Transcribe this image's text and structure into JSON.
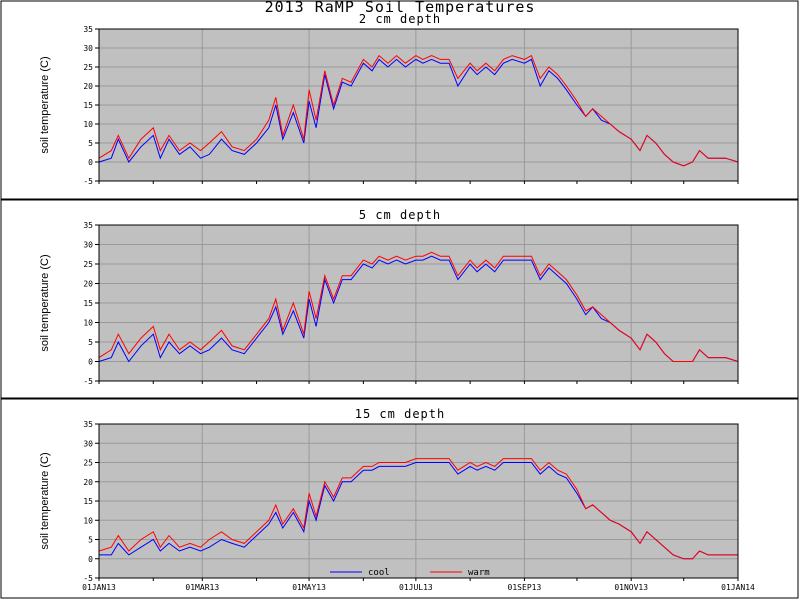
{
  "page_title": "2013 RaMP Soil Temperatures",
  "chart_data": [
    {
      "type": "line",
      "title": "2 cm depth",
      "ylabel": "soil temperature (C)",
      "ylim": [
        -5,
        35
      ],
      "yticks": [
        "-5",
        "0",
        "5",
        "10",
        "15",
        "20",
        "25",
        "30",
        "35"
      ],
      "xlim": [
        "2013-01-01",
        "2014-01-01"
      ],
      "grid": true,
      "x": [
        "2013-01-01",
        "2013-01-08",
        "2013-01-12",
        "2013-01-18",
        "2013-01-25",
        "2013-02-01",
        "2013-02-05",
        "2013-02-10",
        "2013-02-16",
        "2013-02-22",
        "2013-02-28",
        "2013-03-05",
        "2013-03-12",
        "2013-03-18",
        "2013-03-25",
        "2013-04-01",
        "2013-04-08",
        "2013-04-12",
        "2013-04-16",
        "2013-04-22",
        "2013-04-28",
        "2013-05-01",
        "2013-05-05",
        "2013-05-10",
        "2013-05-15",
        "2013-05-20",
        "2013-05-25",
        "2013-06-01",
        "2013-06-06",
        "2013-06-10",
        "2013-06-15",
        "2013-06-20",
        "2013-06-25",
        "2013-07-01",
        "2013-07-05",
        "2013-07-10",
        "2013-07-15",
        "2013-07-20",
        "2013-07-25",
        "2013-08-01",
        "2013-08-05",
        "2013-08-10",
        "2013-08-15",
        "2013-08-20",
        "2013-08-25",
        "2013-09-01",
        "2013-09-05",
        "2013-09-10",
        "2013-09-15",
        "2013-09-20",
        "2013-09-25",
        "2013-10-01",
        "2013-10-06",
        "2013-10-10",
        "2013-10-15",
        "2013-10-20",
        "2013-10-25",
        "2013-11-01",
        "2013-11-06",
        "2013-11-10",
        "2013-11-15",
        "2013-11-20",
        "2013-11-25",
        "2013-12-01",
        "2013-12-06",
        "2013-12-10",
        "2013-12-15",
        "2013-12-20",
        "2013-12-25",
        "2014-01-01"
      ],
      "series": [
        {
          "name": "cool",
          "color": "#0000ff",
          "values": [
            0,
            1,
            6,
            0,
            4,
            7,
            1,
            6,
            2,
            4,
            1,
            2,
            6,
            3,
            2,
            5,
            9,
            15,
            6,
            13,
            5,
            16,
            9,
            23,
            14,
            21,
            20,
            26,
            24,
            27,
            25,
            27,
            25,
            27,
            26,
            27,
            26,
            26,
            20,
            25,
            23,
            25,
            23,
            26,
            27,
            26,
            27,
            20,
            24,
            22,
            19,
            15,
            12,
            14,
            11,
            10,
            8,
            6,
            3,
            7,
            5,
            2,
            0,
            -1,
            0,
            3,
            1,
            1,
            1,
            0
          ]
        },
        {
          "name": "warm",
          "color": "#ff0000",
          "values": [
            1,
            3,
            7,
            1,
            6,
            9,
            3,
            7,
            3,
            5,
            3,
            5,
            8,
            4,
            3,
            6,
            11,
            17,
            7,
            15,
            6,
            19,
            11,
            24,
            15,
            22,
            21,
            27,
            25,
            28,
            26,
            28,
            26,
            28,
            27,
            28,
            27,
            27,
            22,
            26,
            24,
            26,
            24,
            27,
            28,
            27,
            28,
            22,
            25,
            23,
            20,
            16,
            12,
            14,
            12,
            10,
            8,
            6,
            3,
            7,
            5,
            2,
            0,
            -1,
            0,
            3,
            1,
            1,
            1,
            0
          ]
        }
      ]
    },
    {
      "type": "line",
      "title": "5 cm depth",
      "ylabel": "soil temperature (C)",
      "ylim": [
        -5,
        35
      ],
      "yticks": [
        "-5",
        "0",
        "5",
        "10",
        "15",
        "20",
        "25",
        "30",
        "35"
      ],
      "xlim": [
        "2013-01-01",
        "2014-01-01"
      ],
      "grid": true,
      "x": [
        "2013-01-01",
        "2013-01-08",
        "2013-01-12",
        "2013-01-18",
        "2013-01-25",
        "2013-02-01",
        "2013-02-05",
        "2013-02-10",
        "2013-02-16",
        "2013-02-22",
        "2013-02-28",
        "2013-03-05",
        "2013-03-12",
        "2013-03-18",
        "2013-03-25",
        "2013-04-01",
        "2013-04-08",
        "2013-04-12",
        "2013-04-16",
        "2013-04-22",
        "2013-04-28",
        "2013-05-01",
        "2013-05-05",
        "2013-05-10",
        "2013-05-15",
        "2013-05-20",
        "2013-05-25",
        "2013-06-01",
        "2013-06-06",
        "2013-06-10",
        "2013-06-15",
        "2013-06-20",
        "2013-06-25",
        "2013-07-01",
        "2013-07-05",
        "2013-07-10",
        "2013-07-15",
        "2013-07-20",
        "2013-07-25",
        "2013-08-01",
        "2013-08-05",
        "2013-08-10",
        "2013-08-15",
        "2013-08-20",
        "2013-08-25",
        "2013-09-01",
        "2013-09-05",
        "2013-09-10",
        "2013-09-15",
        "2013-09-20",
        "2013-09-25",
        "2013-10-01",
        "2013-10-06",
        "2013-10-10",
        "2013-10-15",
        "2013-10-20",
        "2013-10-25",
        "2013-11-01",
        "2013-11-06",
        "2013-11-10",
        "2013-11-15",
        "2013-11-20",
        "2013-11-25",
        "2013-12-01",
        "2013-12-06",
        "2013-12-10",
        "2013-12-15",
        "2013-12-20",
        "2013-12-25",
        "2014-01-01"
      ],
      "series": [
        {
          "name": "cool",
          "color": "#0000ff",
          "values": [
            0,
            1,
            5,
            0,
            4,
            7,
            1,
            5,
            2,
            4,
            2,
            3,
            6,
            3,
            2,
            6,
            10,
            14,
            7,
            13,
            6,
            16,
            9,
            21,
            15,
            21,
            21,
            25,
            24,
            26,
            25,
            26,
            25,
            26,
            26,
            27,
            26,
            26,
            21,
            25,
            23,
            25,
            23,
            26,
            26,
            26,
            26,
            21,
            24,
            22,
            20,
            16,
            12,
            14,
            11,
            10,
            8,
            6,
            3,
            7,
            5,
            2,
            0,
            0,
            0,
            3,
            1,
            1,
            1,
            0
          ]
        },
        {
          "name": "warm",
          "color": "#ff0000",
          "values": [
            1,
            3,
            7,
            2,
            6,
            9,
            3,
            7,
            3,
            5,
            3,
            5,
            8,
            4,
            3,
            7,
            11,
            16,
            8,
            15,
            7,
            18,
            11,
            22,
            16,
            22,
            22,
            26,
            25,
            27,
            26,
            27,
            26,
            27,
            27,
            28,
            27,
            27,
            22,
            26,
            24,
            26,
            24,
            27,
            27,
            27,
            27,
            22,
            25,
            23,
            21,
            17,
            13,
            14,
            12,
            10,
            8,
            6,
            3,
            7,
            5,
            2,
            0,
            0,
            0,
            3,
            1,
            1,
            1,
            0
          ]
        }
      ]
    },
    {
      "type": "line",
      "title": "15 cm depth",
      "ylabel": "soil temperature (C)",
      "ylim": [
        -5,
        35
      ],
      "yticks": [
        "-5",
        "0",
        "5",
        "10",
        "15",
        "20",
        "25",
        "30",
        "35"
      ],
      "xlim": [
        "2013-01-01",
        "2014-01-01"
      ],
      "xticks": [
        {
          "date": "2013-01-01",
          "label": "01JAN13"
        },
        {
          "date": "2013-03-01",
          "label": "01MAR13"
        },
        {
          "date": "2013-05-01",
          "label": "01MAY13"
        },
        {
          "date": "2013-07-01",
          "label": "01JUL13"
        },
        {
          "date": "2013-09-01",
          "label": "01SEP13"
        },
        {
          "date": "2013-11-01",
          "label": "01NOV13"
        },
        {
          "date": "2014-01-01",
          "label": "01JAN14"
        }
      ],
      "grid": true,
      "legend": {
        "placement": "bottom-center",
        "entries": [
          "cool",
          "warm"
        ]
      },
      "x": [
        "2013-01-01",
        "2013-01-08",
        "2013-01-12",
        "2013-01-18",
        "2013-01-25",
        "2013-02-01",
        "2013-02-05",
        "2013-02-10",
        "2013-02-16",
        "2013-02-22",
        "2013-02-28",
        "2013-03-05",
        "2013-03-12",
        "2013-03-18",
        "2013-03-25",
        "2013-04-01",
        "2013-04-08",
        "2013-04-12",
        "2013-04-16",
        "2013-04-22",
        "2013-04-28",
        "2013-05-01",
        "2013-05-05",
        "2013-05-10",
        "2013-05-15",
        "2013-05-20",
        "2013-05-25",
        "2013-06-01",
        "2013-06-06",
        "2013-06-10",
        "2013-06-15",
        "2013-06-20",
        "2013-06-25",
        "2013-07-01",
        "2013-07-05",
        "2013-07-10",
        "2013-07-15",
        "2013-07-20",
        "2013-07-25",
        "2013-08-01",
        "2013-08-05",
        "2013-08-10",
        "2013-08-15",
        "2013-08-20",
        "2013-08-25",
        "2013-09-01",
        "2013-09-05",
        "2013-09-10",
        "2013-09-15",
        "2013-09-20",
        "2013-09-25",
        "2013-10-01",
        "2013-10-06",
        "2013-10-10",
        "2013-10-15",
        "2013-10-20",
        "2013-10-25",
        "2013-11-01",
        "2013-11-06",
        "2013-11-10",
        "2013-11-15",
        "2013-11-20",
        "2013-11-25",
        "2013-12-01",
        "2013-12-06",
        "2013-12-10",
        "2013-12-15",
        "2013-12-20",
        "2013-12-25",
        "2014-01-01"
      ],
      "series": [
        {
          "name": "cool",
          "color": "#0000ff",
          "values": [
            1,
            1,
            4,
            1,
            3,
            5,
            2,
            4,
            2,
            3,
            2,
            3,
            5,
            4,
            3,
            6,
            9,
            12,
            8,
            12,
            7,
            15,
            10,
            19,
            15,
            20,
            20,
            23,
            23,
            24,
            24,
            24,
            24,
            25,
            25,
            25,
            25,
            25,
            22,
            24,
            23,
            24,
            23,
            25,
            25,
            25,
            25,
            22,
            24,
            22,
            21,
            17,
            13,
            14,
            12,
            10,
            9,
            7,
            4,
            7,
            5,
            3,
            1,
            0,
            0,
            2,
            1,
            1,
            1,
            1
          ]
        },
        {
          "name": "warm",
          "color": "#ff0000",
          "values": [
            2,
            3,
            6,
            2,
            5,
            7,
            3,
            6,
            3,
            4,
            3,
            5,
            7,
            5,
            4,
            7,
            10,
            14,
            9,
            13,
            8,
            17,
            11,
            20,
            16,
            21,
            21,
            24,
            24,
            25,
            25,
            25,
            25,
            26,
            26,
            26,
            26,
            26,
            23,
            25,
            24,
            25,
            24,
            26,
            26,
            26,
            26,
            23,
            25,
            23,
            22,
            18,
            13,
            14,
            12,
            10,
            9,
            7,
            4,
            7,
            5,
            3,
            1,
            0,
            0,
            2,
            1,
            1,
            1,
            1
          ]
        }
      ]
    }
  ]
}
